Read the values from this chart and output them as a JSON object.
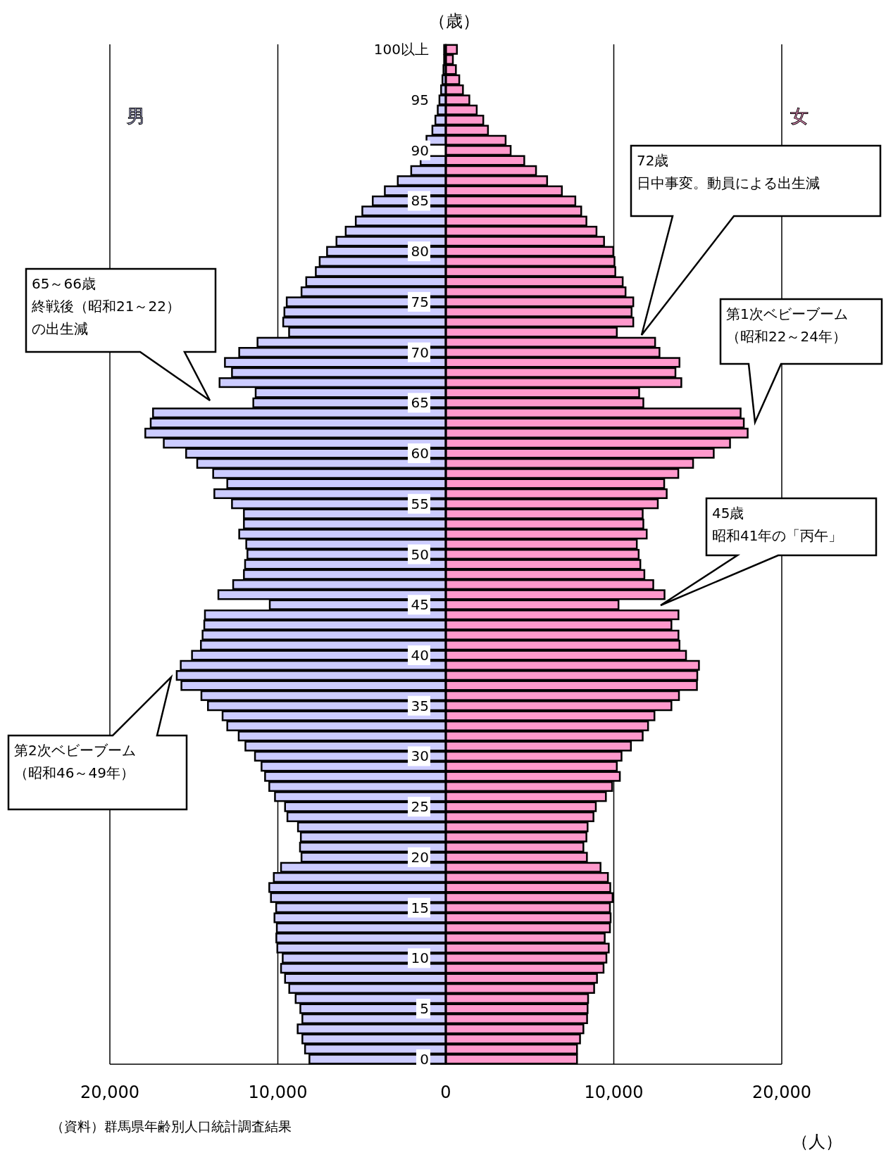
{
  "chart_data": {
    "type": "bar",
    "orientation": "horizontal",
    "ylabel": "（歳）",
    "xlabel": "（人）",
    "categories": [
      "100以上",
      null,
      null,
      null,
      null,
      "95",
      null,
      null,
      null,
      null,
      "90",
      null,
      null,
      null,
      null,
      "85",
      null,
      null,
      null,
      null,
      "80",
      null,
      null,
      null,
      null,
      "75",
      null,
      null,
      null,
      null,
      "70",
      null,
      null,
      null,
      null,
      "65",
      null,
      null,
      null,
      null,
      "60",
      null,
      null,
      null,
      null,
      "55",
      null,
      null,
      null,
      null,
      "50",
      null,
      null,
      null,
      null,
      "45",
      null,
      null,
      null,
      null,
      "40",
      null,
      null,
      null,
      null,
      "35",
      null,
      null,
      null,
      null,
      "30",
      null,
      null,
      null,
      null,
      "25",
      null,
      null,
      null,
      null,
      "20",
      null,
      null,
      null,
      null,
      "15",
      null,
      null,
      null,
      null,
      "10",
      null,
      null,
      null,
      null,
      "5",
      null,
      null,
      null,
      null,
      "0"
    ],
    "series": [
      {
        "name": "男",
        "color": "#ccccff",
        "values": [
          -100,
          -100,
          -140,
          -200,
          -280,
          -380,
          -480,
          -620,
          -800,
          -1150,
          null,
          -1500,
          -2060,
          -2860,
          -3630,
          -4350,
          -4970,
          -5360,
          -5960,
          -6510,
          -7070,
          -7510,
          -7740,
          -8310,
          -8590,
          -9470,
          -9610,
          -9680,
          -9330,
          -11210,
          -12300,
          -13150,
          -12730,
          -13470,
          -11320,
          -11460,
          -17430,
          -17570,
          -17890,
          -16790,
          -15460,
          -14800,
          -13850,
          -13010,
          -13780,
          -12730,
          -12020,
          -12020,
          -12300,
          -11880,
          -11810,
          -11950,
          -12020,
          -12660,
          -13540,
          -10480,
          -14340,
          -14380,
          -14480,
          -14580,
          -15110,
          -15780,
          -16020,
          -15740,
          -14550,
          -14160,
          -13290,
          -13010,
          -12330,
          -11930,
          -11360,
          -10970,
          -10760,
          -10510,
          -10170,
          -9570,
          -9430,
          -8800,
          -8630,
          -8680,
          -8590,
          -9810,
          -10240,
          -10510,
          -10410,
          -10100,
          -10200,
          -10060,
          -10090,
          -10030,
          -9710,
          -9810,
          -9570,
          -9320,
          -8940,
          -8660,
          -8540,
          -8820,
          -8540,
          -8380,
          -8120
        ]
      },
      {
        "name": "女",
        "color": "#ff99cc",
        "values": [
          660,
          420,
          600,
          800,
          1020,
          1400,
          1840,
          2230,
          2510,
          3560,
          3860,
          4670,
          5370,
          6030,
          6910,
          7710,
          8060,
          8370,
          8970,
          9420,
          9970,
          10040,
          10090,
          10530,
          10700,
          11160,
          11060,
          11160,
          10180,
          12460,
          12720,
          13910,
          13670,
          14020,
          11510,
          11760,
          17550,
          17740,
          17970,
          16920,
          15950,
          14720,
          13840,
          13000,
          13150,
          12620,
          11720,
          11760,
          11960,
          11370,
          11480,
          11580,
          11820,
          12350,
          13020,
          10280,
          13850,
          13430,
          13850,
          13910,
          14300,
          15070,
          14970,
          14950,
          13880,
          13430,
          12420,
          12040,
          11720,
          11020,
          10460,
          10180,
          10360,
          9900,
          9530,
          8930,
          8790,
          8440,
          8370,
          8190,
          8400,
          9210,
          9650,
          9790,
          9930,
          9770,
          9810,
          9770,
          9460,
          9700,
          9560,
          9390,
          9000,
          8830,
          8470,
          8440,
          8410,
          8190,
          7990,
          7810,
          7810
        ]
      }
    ],
    "xlim": [
      -20000,
      20000
    ],
    "xticks": [
      {
        "value": -20000,
        "label": "20,000"
      },
      {
        "value": -10000,
        "label": "10,000"
      },
      0,
      {
        "value": 10000,
        "label": "10,000"
      },
      {
        "value": 20000,
        "label": "20,000"
      }
    ],
    "stacked": true,
    "grid": "x",
    "annotations": [
      "72歳",
      "日中事変。動員による出生減",
      "65～66歳",
      "終戦後（昭和21～22）",
      "の出生減",
      "第1次ベビーブーム",
      "（昭和22～24年）",
      "45歳",
      "昭和41年の「丙午」",
      "第2次ベビーブーム",
      "（昭和46～49年）",
      "（資料）群馬県年齢別人口統計調査結果"
    ]
  }
}
